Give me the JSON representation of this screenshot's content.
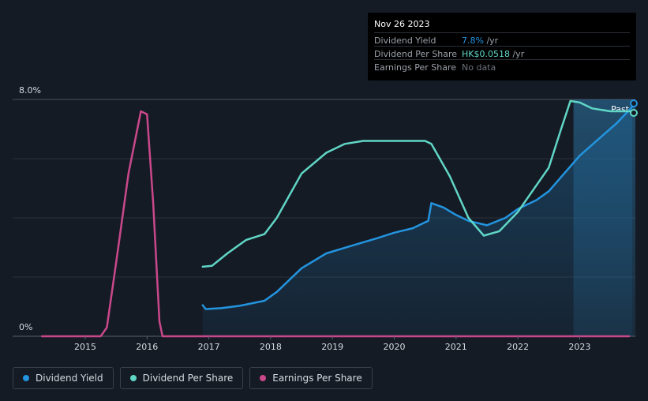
{
  "tooltip": {
    "date": "Nov 26 2023",
    "rows": [
      {
        "label": "Dividend Yield",
        "value": "7.8%",
        "unit": " /yr",
        "color": "#2394df"
      },
      {
        "label": "Dividend Per Share",
        "value": "HK$0.0518",
        "unit": " /yr",
        "color": "#60d6c6"
      },
      {
        "label": "Earnings Per Share",
        "value": "No data",
        "unit": "",
        "color": "#6b7079"
      }
    ]
  },
  "legend": [
    {
      "label": "Dividend Yield",
      "color": "#2394df"
    },
    {
      "label": "Dividend Per Share",
      "color": "#60d6c6"
    },
    {
      "label": "Earnings Per Share",
      "color": "#c9488b"
    }
  ],
  "chart_data": {
    "type": "line",
    "title": "",
    "xlabel": "",
    "ylabel": "",
    "y_tick_labels": [
      "0%",
      "8.0%"
    ],
    "ylim": [
      0,
      8.0
    ],
    "xlim": [
      2014.25,
      2023.9
    ],
    "x_ticks": [
      2015,
      2016,
      2017,
      2018,
      2019,
      2020,
      2021,
      2022,
      2023
    ],
    "past_label": "Past",
    "past_start": 2022.9,
    "series": [
      {
        "name": "Dividend Yield",
        "color": "#2394df",
        "filled": true,
        "points": [
          [
            2016.9,
            1.05
          ],
          [
            2016.95,
            0.92
          ],
          [
            2017.2,
            0.95
          ],
          [
            2017.5,
            1.03
          ],
          [
            2017.9,
            1.2
          ],
          [
            2018.1,
            1.5
          ],
          [
            2018.5,
            2.3
          ],
          [
            2018.9,
            2.8
          ],
          [
            2019.3,
            3.05
          ],
          [
            2019.7,
            3.3
          ],
          [
            2020.0,
            3.5
          ],
          [
            2020.3,
            3.65
          ],
          [
            2020.5,
            3.85
          ],
          [
            2020.55,
            3.9
          ],
          [
            2020.6,
            4.5
          ],
          [
            2020.8,
            4.35
          ],
          [
            2021.0,
            4.1
          ],
          [
            2021.2,
            3.9
          ],
          [
            2021.5,
            3.75
          ],
          [
            2021.8,
            4.0
          ],
          [
            2022.0,
            4.3
          ],
          [
            2022.3,
            4.6
          ],
          [
            2022.5,
            4.9
          ],
          [
            2022.75,
            5.5
          ],
          [
            2023.0,
            6.1
          ],
          [
            2023.3,
            6.65
          ],
          [
            2023.6,
            7.2
          ],
          [
            2023.85,
            7.75
          ]
        ]
      },
      {
        "name": "Dividend Per Share",
        "color": "#60d6c6",
        "filled": false,
        "points": [
          [
            2016.9,
            2.35
          ],
          [
            2017.05,
            2.38
          ],
          [
            2017.3,
            2.8
          ],
          [
            2017.6,
            3.25
          ],
          [
            2017.9,
            3.45
          ],
          [
            2018.1,
            4.0
          ],
          [
            2018.5,
            5.5
          ],
          [
            2018.9,
            6.2
          ],
          [
            2019.2,
            6.5
          ],
          [
            2019.5,
            6.6
          ],
          [
            2019.8,
            6.6
          ],
          [
            2020.2,
            6.6
          ],
          [
            2020.5,
            6.6
          ],
          [
            2020.6,
            6.5
          ],
          [
            2020.9,
            5.4
          ],
          [
            2021.2,
            4.0
          ],
          [
            2021.45,
            3.4
          ],
          [
            2021.7,
            3.55
          ],
          [
            2022.0,
            4.2
          ],
          [
            2022.3,
            5.1
          ],
          [
            2022.5,
            5.7
          ],
          [
            2022.7,
            7.0
          ],
          [
            2022.85,
            7.95
          ],
          [
            2023.0,
            7.9
          ],
          [
            2023.2,
            7.7
          ],
          [
            2023.5,
            7.6
          ],
          [
            2023.7,
            7.6
          ],
          [
            2023.85,
            7.6
          ]
        ]
      },
      {
        "name": "Earnings Per Share",
        "color": "#c9488b",
        "filled": false,
        "points": [
          [
            2014.3,
            0
          ],
          [
            2015.25,
            0
          ],
          [
            2015.35,
            0.3
          ],
          [
            2015.5,
            2.5
          ],
          [
            2015.7,
            5.5
          ],
          [
            2015.9,
            7.6
          ],
          [
            2016.0,
            7.5
          ],
          [
            2016.1,
            4.5
          ],
          [
            2016.2,
            0.5
          ],
          [
            2016.25,
            0
          ],
          [
            2023.8,
            0
          ]
        ]
      }
    ]
  }
}
